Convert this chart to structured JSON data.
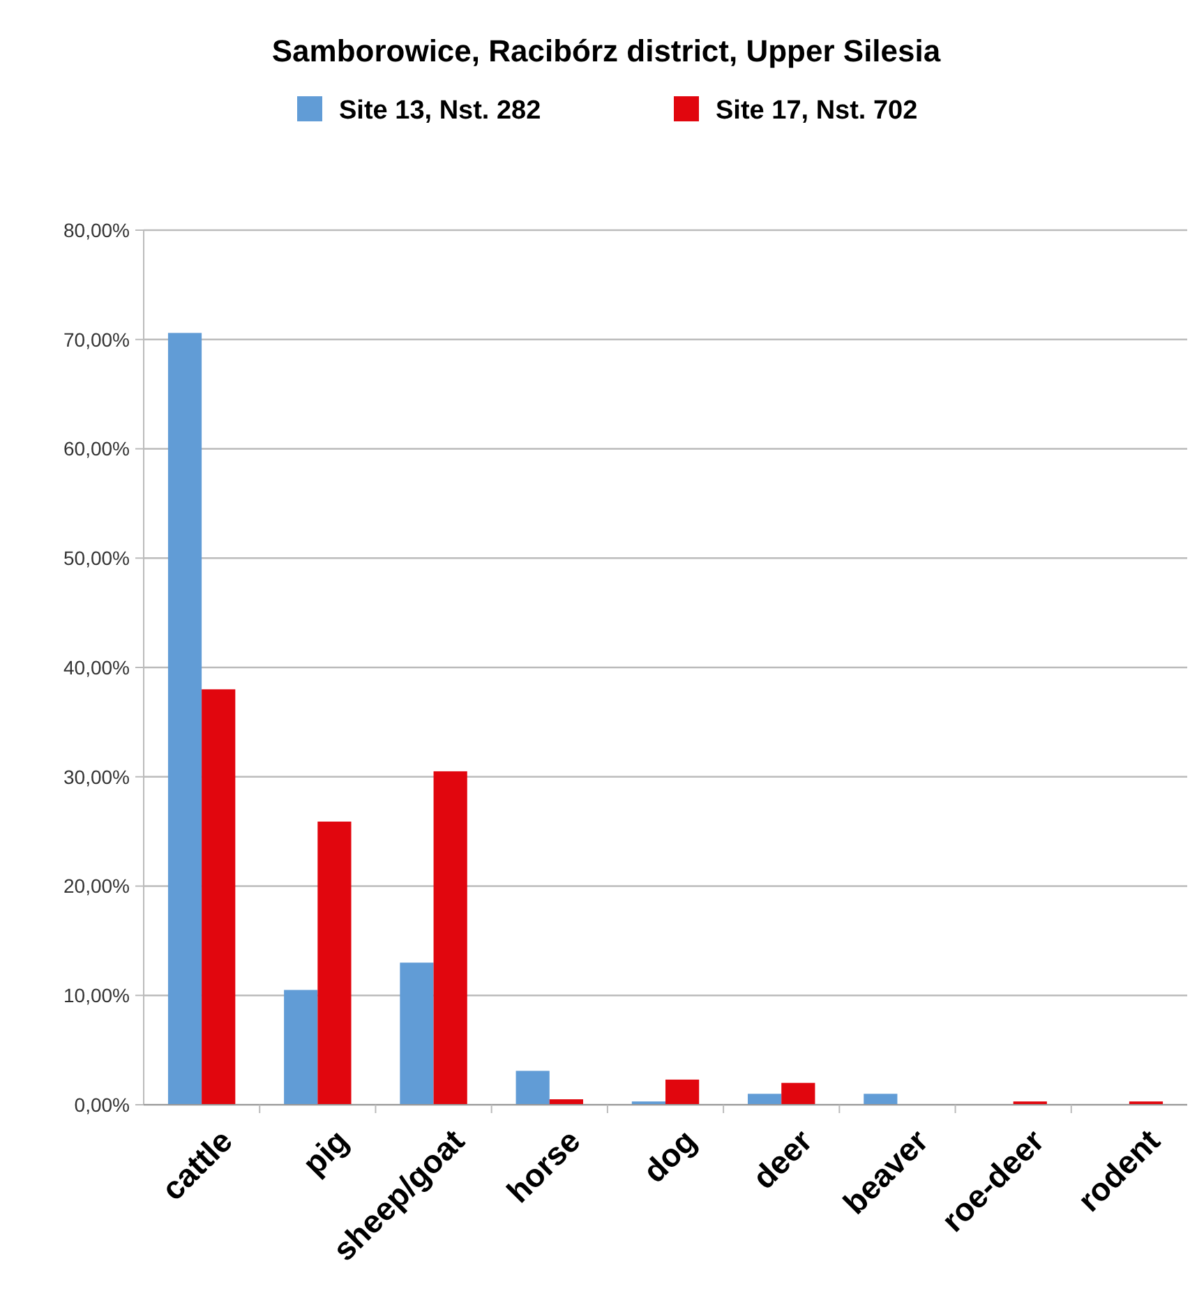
{
  "chart_data": {
    "type": "bar",
    "title": "Samborowice, Racibórz district, Upper Silesia",
    "categories": [
      "cattle",
      "pig",
      "sheep/goat",
      "horse",
      "dog",
      "deer",
      "beaver",
      "roe-deer",
      "rodent"
    ],
    "series": [
      {
        "name": "Site 13, Nst. 282",
        "color": "#619cd6",
        "values": [
          70.6,
          10.5,
          13.0,
          3.1,
          0.3,
          1.0,
          1.0,
          0,
          0
        ]
      },
      {
        "name": "Site 17, Nst. 702",
        "color": "#e1060e",
        "values": [
          38.0,
          25.9,
          30.5,
          0.5,
          2.3,
          2.0,
          0,
          0.3,
          0.3
        ]
      }
    ],
    "ylim": [
      0,
      80
    ],
    "yticks": [
      {
        "value": 0,
        "label": "0,00%"
      },
      {
        "value": 10,
        "label": "10,00%"
      },
      {
        "value": 20,
        "label": "20,00%"
      },
      {
        "value": 30,
        "label": "30,00%"
      },
      {
        "value": 40,
        "label": "40,00%"
      },
      {
        "value": 50,
        "label": "50,00%"
      },
      {
        "value": 60,
        "label": "60,00%"
      },
      {
        "value": 70,
        "label": "70,00%"
      },
      {
        "value": 80,
        "label": "80,00%"
      }
    ],
    "grid": "y",
    "legend": "top"
  }
}
